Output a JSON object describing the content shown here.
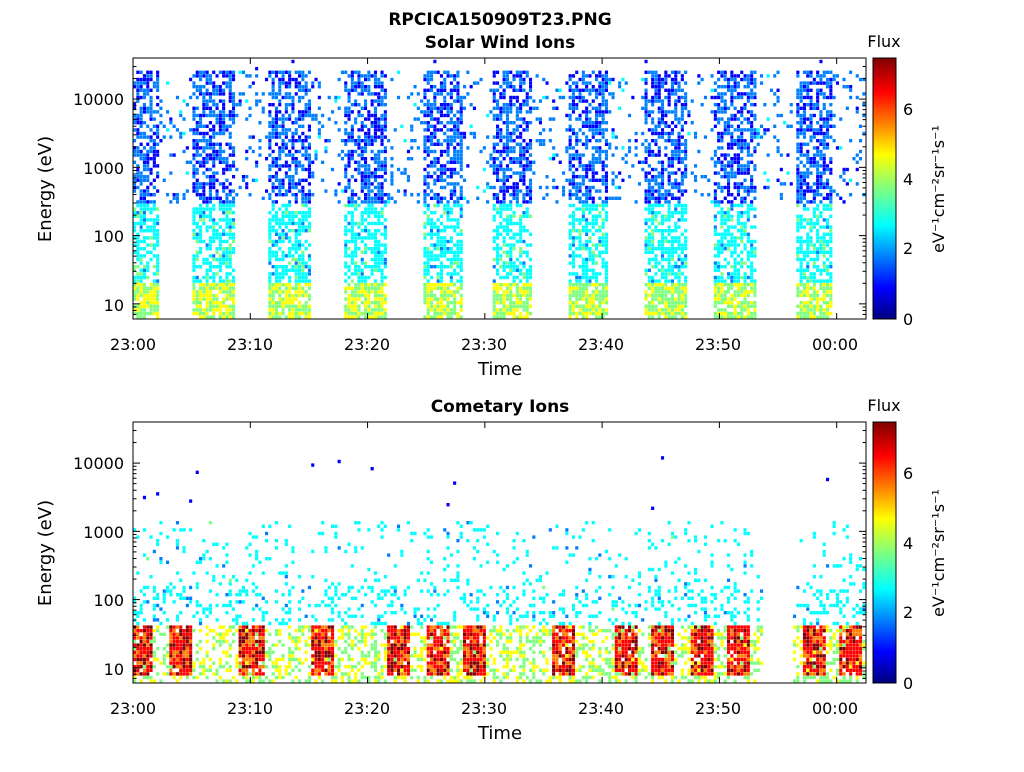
{
  "figure": {
    "title": "RPCICA150909T23.PNG"
  },
  "colors": {
    "colormap": [
      "#00007f",
      "#0000ff",
      "#007fff",
      "#00ffff",
      "#7fff7f",
      "#ffff00",
      "#ff7f00",
      "#ff0000",
      "#7f0000"
    ],
    "axes": "#000000",
    "background": "#ffffff"
  },
  "chart_data": [
    {
      "type": "heatmap",
      "title": "Solar Wind Ions",
      "xlabel": "Time",
      "ylabel": "Energy (eV)",
      "y_scale": "log",
      "ylim": [
        6,
        40000
      ],
      "x_ticks": [
        "23:00",
        "23:10",
        "23:20",
        "23:30",
        "23:40",
        "23:50",
        "00:00"
      ],
      "y_ticks": [
        "10",
        "100",
        "1000",
        "10000"
      ],
      "colorbar": {
        "label_top": "Flux",
        "units": "eV⁻¹cm⁻²sr⁻¹s⁻¹",
        "range": [
          0,
          7.3
        ],
        "ticks": [
          "0",
          "2",
          "4",
          "6"
        ]
      },
      "bursts_minutes": [
        {
          "start": 0.0,
          "end": 2.0
        },
        {
          "start": 5.0,
          "end": 8.5
        },
        {
          "start": 11.5,
          "end": 15.0
        },
        {
          "start": 18.0,
          "end": 21.5
        },
        {
          "start": 24.5,
          "end": 28.0
        },
        {
          "start": 30.5,
          "end": 34.0
        },
        {
          "start": 37.0,
          "end": 40.5
        },
        {
          "start": 43.5,
          "end": 47.0
        },
        {
          "start": 49.5,
          "end": 53.0
        },
        {
          "start": 56.5,
          "end": 59.5
        }
      ],
      "x_range_minutes": [
        0,
        62.5
      ]
    },
    {
      "type": "heatmap",
      "title": "Cometary Ions",
      "xlabel": "Time",
      "ylabel": "Energy (eV)",
      "y_scale": "log",
      "ylim": [
        6,
        40000
      ],
      "x_ticks": [
        "23:00",
        "23:10",
        "23:20",
        "23:30",
        "23:40",
        "23:50",
        "00:00"
      ],
      "y_ticks": [
        "10",
        "100",
        "1000",
        "10000"
      ],
      "colorbar": {
        "label_top": "Flux",
        "units": "eV⁻¹cm⁻²sr⁻¹s⁻¹",
        "range": [
          0,
          7.3
        ],
        "ticks": [
          "0",
          "2",
          "4",
          "6"
        ]
      },
      "hot_spots_minutes": [
        0.5,
        4.0,
        10.0,
        16.0,
        22.5,
        26.0,
        29.0,
        36.5,
        42.0,
        45.0,
        48.5,
        51.5,
        58.0,
        61.0
      ],
      "gap_minutes": {
        "start": 53.5,
        "end": 56.0
      },
      "x_range_minutes": [
        0,
        62.5
      ]
    }
  ]
}
